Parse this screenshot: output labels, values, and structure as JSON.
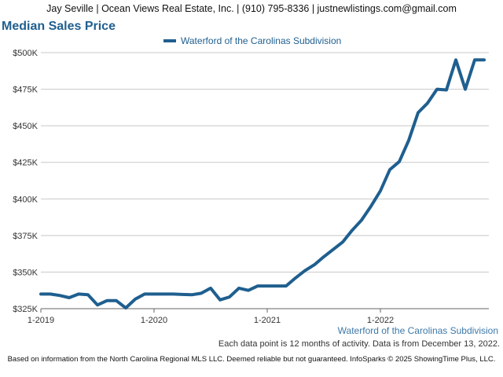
{
  "header": {
    "text": "Jay Seville | Ocean Views Real Estate, Inc. | (910) 795-8336 | justnewlistings.com@gmail.com"
  },
  "chart_title": "Median Sales Price",
  "legend": {
    "series_name": "Waterford of the Carolinas Subdivision"
  },
  "series_caption": "Waterford of the Carolinas Subdivision",
  "data_note": "Each data point is 12 months of activity. Data is from December 13, 2022.",
  "footer": "Based on information from the North Carolina Regional MLS LLC. Deemed reliable but not guaranteed. InfoSparks © 2025 ShowingTime Plus, LLC.",
  "colors": {
    "series": "#1f5f8f",
    "grid": "#c8c8c8",
    "axis": "#666666"
  },
  "chart_data": {
    "type": "line",
    "title": "Median Sales Price",
    "xlabel": "",
    "ylabel": "",
    "ylim": [
      325000,
      500000
    ],
    "y_ticks": [
      325000,
      350000,
      375000,
      400000,
      425000,
      450000,
      475000,
      500000
    ],
    "y_tick_labels": [
      "$325K",
      "$350K",
      "$375K",
      "$400K",
      "$425K",
      "$450K",
      "$475K",
      "$500K"
    ],
    "x_tick_labels": [
      "1-2019",
      "1-2020",
      "1-2021",
      "1-2022"
    ],
    "x_tick_dates": [
      "2019-01",
      "2020-01",
      "2021-01",
      "2022-01"
    ],
    "x_range": [
      "2019-01",
      "2022-12"
    ],
    "grid": true,
    "legend_position": "top-center",
    "series": [
      {
        "name": "Waterford of the Carolinas Subdivision",
        "x": [
          "2019-01",
          "2019-02",
          "2019-03",
          "2019-04",
          "2019-05",
          "2019-06",
          "2019-07",
          "2019-08",
          "2019-09",
          "2019-10",
          "2019-11",
          "2019-12",
          "2020-01",
          "2020-02",
          "2020-03",
          "2020-04",
          "2020-05",
          "2020-06",
          "2020-07",
          "2020-08",
          "2020-09",
          "2020-10",
          "2020-11",
          "2020-12",
          "2021-01",
          "2021-02",
          "2021-03",
          "2021-04",
          "2021-05",
          "2021-06",
          "2021-07",
          "2021-08",
          "2021-09",
          "2021-10",
          "2021-11",
          "2021-12",
          "2022-01",
          "2022-02",
          "2022-03",
          "2022-04",
          "2022-05",
          "2022-06",
          "2022-07",
          "2022-08",
          "2022-09",
          "2022-10",
          "2022-11",
          "2022-12"
        ],
        "values": [
          335000,
          335000,
          334000,
          332500,
          335000,
          334500,
          327500,
          330500,
          330500,
          325500,
          331500,
          335000,
          335000,
          335000,
          335000,
          334700,
          334500,
          335500,
          339000,
          331000,
          333000,
          339000,
          337500,
          340500,
          340500,
          340500,
          340500,
          346000,
          351000,
          355000,
          360500,
          365500,
          370500,
          378500,
          385500,
          395000,
          405500,
          420000,
          425500,
          440000,
          459000,
          465500,
          475000,
          474500,
          495000,
          475000,
          495000,
          495000
        ]
      }
    ]
  }
}
